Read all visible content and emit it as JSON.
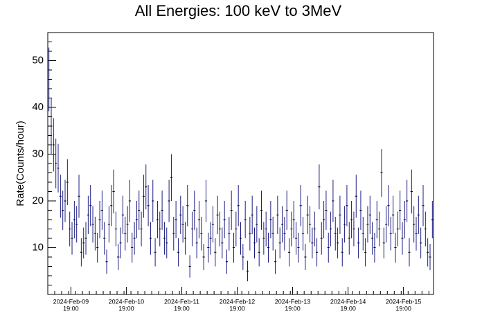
{
  "chart_data": {
    "type": "errorbar",
    "title": "All Energies:  100 keV to 3MeV",
    "ylabel": "Rate(Counts/hour)",
    "color": "#1a1a80",
    "xlim": [
      "2024-02-09 09:00",
      "2024-02-16 08:00"
    ],
    "ylim": [
      0,
      56
    ],
    "yticks": [
      10,
      20,
      30,
      40,
      50
    ],
    "xticks": [
      {
        "value": "2024-02-09 19:00",
        "label": [
          "2024-Feb-09",
          "19:00"
        ]
      },
      {
        "value": "2024-02-10 19:00",
        "label": [
          "2024-Feb-10",
          "19:00"
        ]
      },
      {
        "value": "2024-02-11 19:00",
        "label": [
          "2024-Feb-11",
          "19:00"
        ]
      },
      {
        "value": "2024-02-12 19:00",
        "label": [
          "2024-Feb-12",
          "19:00"
        ]
      },
      {
        "value": "2024-02-13 19:00",
        "label": [
          "2024-Feb-13",
          "19:00"
        ]
      },
      {
        "value": "2024-02-14 19:00",
        "label": [
          "2024-Feb-14",
          "19:00"
        ]
      },
      {
        "value": "2024-02-15 19:00",
        "label": [
          "2024-Feb-15",
          "19:00"
        ]
      }
    ],
    "x": [
      "2024-02-09 09:30",
      "2024-02-09 10:30",
      "2024-02-09 11:30",
      "2024-02-09 12:30",
      "2024-02-09 13:30",
      "2024-02-09 14:30",
      "2024-02-09 15:30",
      "2024-02-09 16:30",
      "2024-02-09 17:30",
      "2024-02-09 18:30",
      "2024-02-09 19:30",
      "2024-02-09 20:30",
      "2024-02-09 21:30",
      "2024-02-09 22:30",
      "2024-02-09 23:30",
      "2024-02-10 00:30",
      "2024-02-10 01:30",
      "2024-02-10 02:30",
      "2024-02-10 03:30",
      "2024-02-10 04:30",
      "2024-02-10 05:30",
      "2024-02-10 06:30",
      "2024-02-10 07:30",
      "2024-02-10 08:30",
      "2024-02-10 09:30",
      "2024-02-10 10:30",
      "2024-02-10 11:30",
      "2024-02-10 12:30",
      "2024-02-10 13:30",
      "2024-02-10 14:30",
      "2024-02-10 15:30",
      "2024-02-10 16:30",
      "2024-02-10 17:30",
      "2024-02-10 18:30",
      "2024-02-10 19:30",
      "2024-02-10 20:30",
      "2024-02-10 21:30",
      "2024-02-10 22:30",
      "2024-02-10 23:30",
      "2024-02-11 00:30",
      "2024-02-11 01:30",
      "2024-02-11 02:30",
      "2024-02-11 03:30",
      "2024-02-11 04:30",
      "2024-02-11 05:30",
      "2024-02-11 06:30",
      "2024-02-11 07:30",
      "2024-02-11 08:30",
      "2024-02-11 09:30",
      "2024-02-11 10:30",
      "2024-02-11 11:30",
      "2024-02-11 12:30",
      "2024-02-11 13:30",
      "2024-02-11 14:30",
      "2024-02-11 15:30",
      "2024-02-11 16:30",
      "2024-02-11 17:30",
      "2024-02-11 18:30",
      "2024-02-11 19:30",
      "2024-02-11 20:30",
      "2024-02-11 21:30",
      "2024-02-11 22:30",
      "2024-02-11 23:30",
      "2024-02-12 00:30",
      "2024-02-12 01:30",
      "2024-02-12 02:30",
      "2024-02-12 03:30",
      "2024-02-12 04:30",
      "2024-02-12 05:30",
      "2024-02-12 06:30",
      "2024-02-12 07:30",
      "2024-02-12 08:30",
      "2024-02-12 09:30",
      "2024-02-12 10:30",
      "2024-02-12 11:30",
      "2024-02-12 12:30",
      "2024-02-12 13:30",
      "2024-02-12 14:30",
      "2024-02-12 15:30",
      "2024-02-12 16:30",
      "2024-02-12 17:30",
      "2024-02-12 18:30",
      "2024-02-12 19:30",
      "2024-02-12 20:30",
      "2024-02-12 21:30",
      "2024-02-12 22:30",
      "2024-02-12 23:30",
      "2024-02-13 00:30",
      "2024-02-13 01:30",
      "2024-02-13 02:30",
      "2024-02-13 03:30",
      "2024-02-13 04:30",
      "2024-02-13 05:30",
      "2024-02-13 06:30",
      "2024-02-13 07:30",
      "2024-02-13 08:30",
      "2024-02-13 09:30",
      "2024-02-13 10:30",
      "2024-02-13 11:30",
      "2024-02-13 12:30",
      "2024-02-13 13:30",
      "2024-02-13 14:30",
      "2024-02-13 15:30",
      "2024-02-13 16:30",
      "2024-02-13 17:30",
      "2024-02-13 18:30",
      "2024-02-13 19:30",
      "2024-02-13 20:30",
      "2024-02-13 21:30",
      "2024-02-13 22:30",
      "2024-02-13 23:30",
      "2024-02-14 00:30",
      "2024-02-14 01:30",
      "2024-02-14 02:30",
      "2024-02-14 03:30",
      "2024-02-14 04:30",
      "2024-02-14 05:30",
      "2024-02-14 06:30",
      "2024-02-14 07:30",
      "2024-02-14 08:30",
      "2024-02-14 09:30",
      "2024-02-14 10:30",
      "2024-02-14 11:30",
      "2024-02-14 12:30",
      "2024-02-14 13:30",
      "2024-02-14 14:30",
      "2024-02-14 15:30",
      "2024-02-14 16:30",
      "2024-02-14 17:30",
      "2024-02-14 18:30",
      "2024-02-14 19:30",
      "2024-02-14 20:30",
      "2024-02-14 21:30",
      "2024-02-14 22:30",
      "2024-02-14 23:30",
      "2024-02-15 00:30",
      "2024-02-15 01:30",
      "2024-02-15 02:30",
      "2024-02-15 03:30",
      "2024-02-15 04:30",
      "2024-02-15 05:30",
      "2024-02-15 06:30",
      "2024-02-15 07:30",
      "2024-02-15 08:30",
      "2024-02-15 09:30",
      "2024-02-15 10:30",
      "2024-02-15 11:30",
      "2024-02-15 12:30",
      "2024-02-15 13:30",
      "2024-02-15 14:30",
      "2024-02-15 15:30",
      "2024-02-15 16:30",
      "2024-02-15 17:30",
      "2024-02-15 18:30",
      "2024-02-15 19:30",
      "2024-02-15 20:30",
      "2024-02-15 21:30",
      "2024-02-15 22:30",
      "2024-02-15 23:30",
      "2024-02-16 00:30",
      "2024-02-16 01:30",
      "2024-02-16 02:30",
      "2024-02-16 03:30",
      "2024-02-16 04:30",
      "2024-02-16 05:30",
      "2024-02-16 06:30",
      "2024-02-16 07:30"
    ],
    "values": [
      46,
      36,
      32,
      28,
      27,
      21,
      18,
      20,
      24,
      14,
      12,
      16,
      15,
      21,
      9,
      11,
      12,
      17,
      19,
      15,
      13,
      10,
      16,
      18,
      12,
      7,
      15,
      19,
      22,
      14,
      8,
      11,
      17,
      13,
      15,
      20,
      10,
      12,
      16,
      18,
      14,
      21,
      23,
      19,
      12,
      20,
      9,
      16,
      14,
      18,
      12,
      11,
      20,
      25,
      13,
      16,
      9,
      17,
      15,
      12,
      19,
      6,
      14,
      18,
      11,
      16,
      13,
      8,
      20,
      10,
      12,
      15,
      9,
      17,
      14,
      11,
      16,
      7,
      13,
      18,
      10,
      14,
      19,
      12,
      8,
      16,
      5,
      13,
      17,
      11,
      15,
      9,
      18,
      12,
      14,
      10,
      16,
      13,
      7,
      17,
      11,
      15,
      13,
      18,
      9,
      14,
      16,
      12,
      10,
      19,
      13,
      8,
      17,
      15,
      11,
      14,
      9,
      23,
      12,
      16,
      18,
      10,
      14,
      20,
      13,
      11,
      17,
      9,
      15,
      19,
      12,
      16,
      14,
      21,
      11,
      18,
      13,
      9,
      15,
      17,
      12,
      10,
      16,
      14,
      26,
      11,
      15,
      19,
      13,
      17,
      10,
      14,
      18,
      12,
      16,
      20,
      9,
      22,
      15,
      13,
      17,
      11,
      19,
      14,
      9,
      8,
      16
    ],
    "errors": [
      6.8,
      6,
      5.7,
      5.3,
      5.2,
      4.6,
      4.2,
      4.5,
      4.9,
      3.7,
      3.5,
      4,
      3.9,
      4.6,
      3,
      3.3,
      3.5,
      4.1,
      4.4,
      3.9,
      3.6,
      3.2,
      4,
      4.2,
      3.5,
      2.6,
      3.9,
      4.4,
      4.7,
      3.7,
      2.8,
      3.3,
      4.1,
      3.6,
      3.9,
      4.5,
      3.2,
      3.5,
      4,
      4.2,
      3.7,
      4.6,
      4.8,
      4.4,
      3.5,
      4.5,
      3,
      4,
      3.7,
      4.2,
      3.5,
      3.3,
      4.5,
      5,
      3.6,
      4,
      3,
      4.1,
      3.9,
      3.5,
      4.4,
      2.4,
      3.7,
      4.2,
      3.3,
      4,
      3.6,
      2.8,
      4.5,
      3.2,
      3.5,
      3.9,
      3,
      4.1,
      3.7,
      3.3,
      4,
      2.6,
      3.6,
      4.2,
      3.2,
      3.7,
      4.4,
      3.5,
      2.8,
      4,
      2.2,
      3.6,
      4.1,
      3.3,
      3.9,
      3,
      4.2,
      3.5,
      3.7,
      3.2,
      4,
      3.6,
      2.6,
      4.1,
      3.3,
      3.9,
      3.6,
      4.2,
      3,
      3.7,
      4,
      3.5,
      3.2,
      4.4,
      3.6,
      2.8,
      4.1,
      3.9,
      3.3,
      3.7,
      3,
      4.8,
      3.5,
      4,
      4.2,
      3.2,
      3.7,
      4.5,
      3.6,
      3.3,
      4.1,
      3,
      3.9,
      4.4,
      3.5,
      4,
      3.7,
      4.6,
      3.3,
      4.2,
      3.6,
      3,
      3.9,
      4.1,
      3.5,
      3.2,
      4,
      3.7,
      5.1,
      3.3,
      3.9,
      4.4,
      3.6,
      4.1,
      3.2,
      3.7,
      4.2,
      3.5,
      4,
      4.5,
      3,
      4.7,
      3.9,
      3.6,
      4.1,
      3.3,
      4.4,
      3.7,
      3,
      2.8,
      4
    ]
  }
}
